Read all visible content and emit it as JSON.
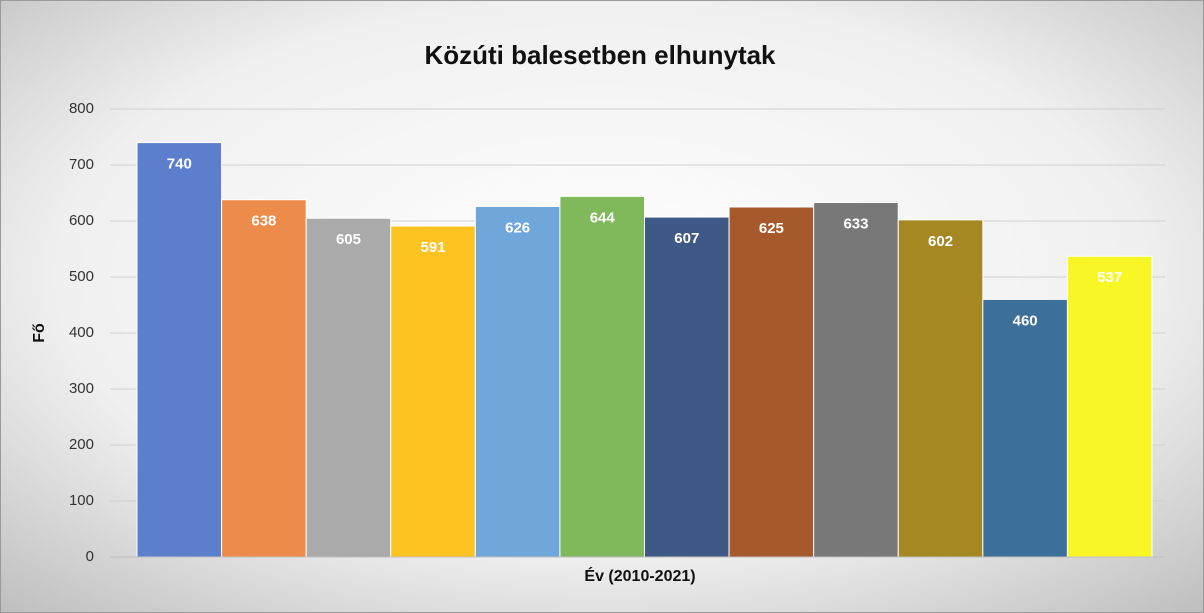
{
  "chart_data": {
    "type": "bar",
    "title": "Közúti balesetben elhunytak",
    "x_label": "Év (2010-2021)",
    "y_label": "Fő",
    "values": [
      740,
      638,
      605,
      591,
      626,
      644,
      607,
      625,
      633,
      602,
      460,
      537
    ],
    "colors": [
      "#5b7fcc",
      "#ec8b4a",
      "#aaaaaa",
      "#fdc321",
      "#70a7db",
      "#80b95c",
      "#3f5987",
      "#a65a2c",
      "#787878",
      "#a68822",
      "#3d6f9b",
      "#f8f625"
    ],
    "ylim": [
      0,
      800
    ],
    "yticks": [
      0,
      100,
      200,
      300,
      400,
      500,
      600,
      700,
      800
    ],
    "grid": true
  }
}
